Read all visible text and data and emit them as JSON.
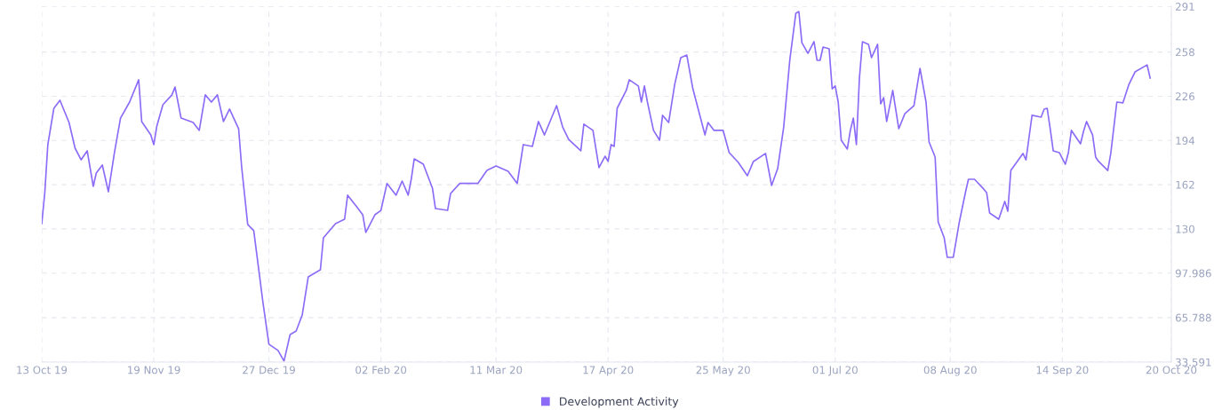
{
  "chart_data": {
    "type": "line",
    "x": [
      "2019-10-13",
      "2019-10-14",
      "2019-10-15",
      "2019-10-17",
      "2019-10-19",
      "2019-10-22",
      "2019-10-24",
      "2019-10-26",
      "2019-10-28",
      "2019-10-30",
      "2019-10-31",
      "2019-11-02",
      "2019-11-04",
      "2019-11-06",
      "2019-11-08",
      "2019-11-11",
      "2019-11-14",
      "2019-11-15",
      "2019-11-18",
      "2019-11-19",
      "2019-11-20",
      "2019-11-22",
      "2019-11-25",
      "2019-11-26",
      "2019-11-28",
      "2019-12-02",
      "2019-12-04",
      "2019-12-06",
      "2019-12-08",
      "2019-12-10",
      "2019-12-12",
      "2019-12-14",
      "2019-12-17",
      "2019-12-18",
      "2019-12-20",
      "2019-12-22",
      "2019-12-25",
      "2019-12-27",
      "2019-12-30",
      "2020-01-01",
      "2020-01-03",
      "2020-01-05",
      "2020-01-07",
      "2020-01-09",
      "2020-01-13",
      "2020-01-14",
      "2020-01-16",
      "2020-01-18",
      "2020-01-21",
      "2020-01-22",
      "2020-01-25",
      "2020-01-27",
      "2020-01-28",
      "2020-01-31",
      "2020-02-02",
      "2020-02-04",
      "2020-02-07",
      "2020-02-09",
      "2020-02-11",
      "2020-02-12",
      "2020-02-13",
      "2020-02-16",
      "2020-02-19",
      "2020-02-20",
      "2020-02-24",
      "2020-02-25",
      "2020-02-28",
      "2020-03-05",
      "2020-03-08",
      "2020-03-11",
      "2020-03-15",
      "2020-03-18",
      "2020-03-20",
      "2020-03-23",
      "2020-03-25",
      "2020-03-27",
      "2020-03-31",
      "2020-04-02",
      "2020-04-04",
      "2020-04-08",
      "2020-04-09",
      "2020-04-12",
      "2020-04-14",
      "2020-04-16",
      "2020-04-17",
      "2020-04-18",
      "2020-04-19",
      "2020-04-20",
      "2020-04-23",
      "2020-04-24",
      "2020-04-27",
      "2020-04-28",
      "2020-04-29",
      "2020-04-30",
      "2020-05-02",
      "2020-05-04",
      "2020-05-05",
      "2020-05-07",
      "2020-05-09",
      "2020-05-11",
      "2020-05-13",
      "2020-05-15",
      "2020-05-19",
      "2020-05-20",
      "2020-05-22",
      "2020-05-25",
      "2020-05-27",
      "2020-05-30",
      "2020-06-02",
      "2020-06-04",
      "2020-06-08",
      "2020-06-10",
      "2020-06-12",
      "2020-06-14",
      "2020-06-16",
      "2020-06-18",
      "2020-06-19",
      "2020-06-20",
      "2020-06-22",
      "2020-06-24",
      "2020-06-25",
      "2020-06-26",
      "2020-06-27",
      "2020-06-29",
      "2020-06-30",
      "2020-07-01",
      "2020-07-02",
      "2020-07-03",
      "2020-07-05",
      "2020-07-06",
      "2020-07-07",
      "2020-07-08",
      "2020-07-09",
      "2020-07-10",
      "2020-07-12",
      "2020-07-13",
      "2020-07-15",
      "2020-07-16",
      "2020-07-17",
      "2020-07-18",
      "2020-07-20",
      "2020-07-22",
      "2020-07-24",
      "2020-07-27",
      "2020-07-29",
      "2020-07-31",
      "2020-08-01",
      "2020-08-03",
      "2020-08-04",
      "2020-08-06",
      "2020-08-07",
      "2020-08-09",
      "2020-08-11",
      "2020-08-13",
      "2020-08-14",
      "2020-08-16",
      "2020-08-19",
      "2020-08-20",
      "2020-08-21",
      "2020-08-24",
      "2020-08-26",
      "2020-08-27",
      "2020-08-28",
      "2020-09-01",
      "2020-09-02",
      "2020-09-03",
      "2020-09-04",
      "2020-09-07",
      "2020-09-08",
      "2020-09-09",
      "2020-09-10",
      "2020-09-11",
      "2020-09-13",
      "2020-09-15",
      "2020-09-16",
      "2020-09-17",
      "2020-09-20",
      "2020-09-21",
      "2020-09-22",
      "2020-09-24",
      "2020-09-25",
      "2020-09-26",
      "2020-09-29",
      "2020-09-30",
      "2020-10-02",
      "2020-10-04",
      "2020-10-06",
      "2020-10-08",
      "2020-10-12",
      "2020-10-13"
    ],
    "series": [
      {
        "name": "Development Activity",
        "color": "#8c6cf7",
        "values": [
          133.8,
          156.3,
          191,
          217.3,
          223.1,
          207,
          188.4,
          180,
          186.5,
          160.8,
          170.4,
          176.2,
          156.9,
          185.2,
          210.2,
          221.8,
          237.9,
          207.7,
          198,
          191,
          204.5,
          219.9,
          227,
          232.7,
          210.2,
          207,
          201.3,
          227,
          221.8,
          227,
          207.7,
          216.7,
          202.5,
          174.9,
          133.2,
          128.7,
          77.3,
          46.5,
          42,
          34.3,
          53.5,
          56.1,
          67.6,
          95.3,
          100.4,
          123.5,
          128.7,
          133.8,
          137,
          154.4,
          146,
          140.2,
          127.4,
          140.2,
          143.4,
          162.9,
          154.4,
          164.6,
          154.4,
          165.9,
          180.7,
          176.8,
          159.5,
          144.7,
          143.4,
          155.6,
          162.9,
          162.9,
          172.3,
          175.6,
          171.7,
          162.9,
          191,
          189.7,
          207.7,
          198,
          219.2,
          203.8,
          194.8,
          186.5,
          205.8,
          201.3,
          174.3,
          182.6,
          178.8,
          191,
          189.7,
          217.3,
          230.2,
          237.9,
          233.4,
          221.8,
          233.4,
          221.8,
          201.3,
          194.2,
          212.2,
          207,
          234.6,
          253.9,
          255.8,
          231.4,
          198,
          207,
          201.3,
          201.3,
          185.2,
          178.1,
          168.5,
          178.8,
          184.6,
          161.4,
          173.6,
          203.8,
          252,
          286,
          287.3,
          264.8,
          257.1,
          265.5,
          252,
          252,
          261.6,
          260.3,
          231.4,
          233.4,
          221.8,
          194.2,
          187.8,
          201.3,
          210.2,
          191,
          239.2,
          265.5,
          263.6,
          253.9,
          263.6,
          220.5,
          225,
          207.7,
          230.2,
          202.5,
          213.4,
          219.2,
          246.2,
          221.8,
          192.9,
          182,
          135.1,
          123.5,
          109.4,
          109.4,
          135.1,
          156.3,
          165.9,
          165.9,
          158.9,
          156.3,
          141.5,
          137,
          149.9,
          142.8,
          172.3,
          184.6,
          180,
          196.1,
          212.2,
          210.9,
          216.7,
          217.3,
          202.5,
          186.5,
          185.2,
          176.8,
          185.2,
          201.3,
          191.6,
          200.6,
          207.7,
          198,
          182,
          178.8,
          172.3,
          184.6,
          221.8,
          221.2,
          234.6,
          243.6,
          248.7,
          239.2
        ]
      }
    ],
    "xlim": [
      "2019-10-13",
      "2020-10-20"
    ],
    "xticks": [
      {
        "value": "2019-10-13",
        "label": "13 Oct 19"
      },
      {
        "value": "2019-11-19",
        "label": "19 Nov 19"
      },
      {
        "value": "2019-12-27",
        "label": "27 Dec 19"
      },
      {
        "value": "2020-02-02",
        "label": "02 Feb 20"
      },
      {
        "value": "2020-03-11",
        "label": "11 Mar 20"
      },
      {
        "value": "2020-04-17",
        "label": "17 Apr 20"
      },
      {
        "value": "2020-05-25",
        "label": "25 May 20"
      },
      {
        "value": "2020-07-01",
        "label": "01 Jul 20"
      },
      {
        "value": "2020-08-08",
        "label": "08 Aug 20"
      },
      {
        "value": "2020-09-14",
        "label": "14 Sep 20"
      },
      {
        "value": "2020-10-20",
        "label": "20 Oct 20"
      }
    ],
    "ylim": [
      33.591,
      291.17
    ],
    "yticks": [
      33.591,
      65.788,
      97.986,
      130,
      162,
      194,
      226,
      258,
      291
    ],
    "grid": true,
    "legend": "bottom",
    "marker": "none",
    "line_style": "solid"
  }
}
